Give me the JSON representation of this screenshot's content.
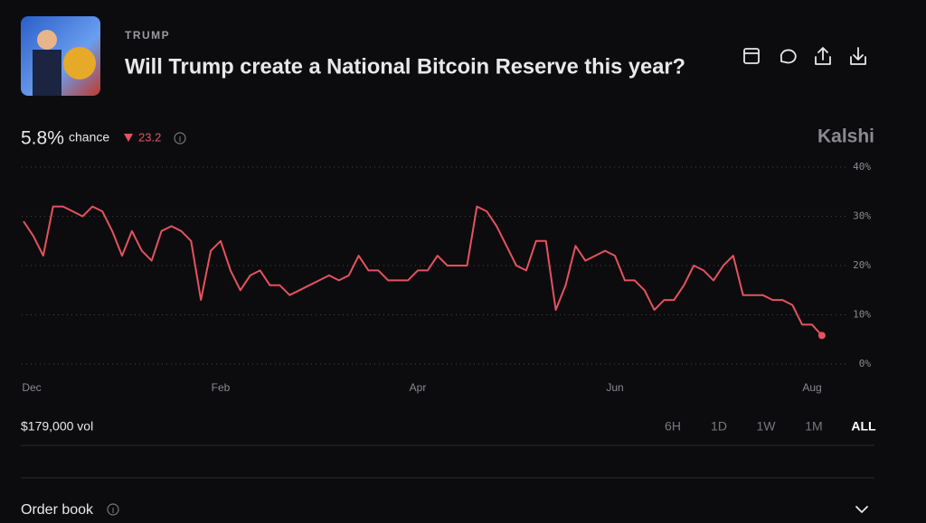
{
  "header": {
    "category": "TRUMP",
    "title": "Will Trump create a National Bitcoin Reserve this year?"
  },
  "stats": {
    "chance_value": "5.8%",
    "chance_label": "chance",
    "change": "23.2",
    "brand": "Kalshi"
  },
  "chart_data": {
    "type": "line",
    "color": "#e5525d",
    "categories": [
      "Dec",
      null,
      null,
      null,
      null,
      null,
      null,
      null,
      null,
      null,
      null,
      null,
      null,
      null,
      null,
      null,
      null,
      null,
      null,
      null,
      "Feb",
      null,
      null,
      null,
      null,
      null,
      null,
      null,
      null,
      null,
      null,
      null,
      null,
      null,
      null,
      null,
      null,
      null,
      null,
      null,
      "Apr",
      null,
      null,
      null,
      null,
      null,
      null,
      null,
      null,
      null,
      null,
      null,
      null,
      null,
      null,
      null,
      null,
      null,
      null,
      null,
      "Jun",
      null,
      null,
      null,
      null,
      null,
      null,
      null,
      null,
      null,
      null,
      null,
      null,
      null,
      null,
      null,
      null,
      null,
      null,
      null,
      "Aug",
      null
    ],
    "values": [
      29,
      26,
      22,
      32,
      32,
      31,
      30,
      32,
      31,
      27,
      22,
      27,
      23,
      21,
      27,
      28,
      27,
      25,
      13,
      23,
      25,
      19,
      15,
      18,
      19,
      16,
      16,
      14,
      15,
      16,
      17,
      18,
      17,
      18,
      22,
      19,
      19,
      17,
      17,
      17,
      19,
      19,
      22,
      20,
      20,
      20,
      32,
      31,
      28,
      24,
      20,
      19,
      25,
      25,
      11,
      16,
      24,
      21,
      22,
      23,
      22,
      17,
      17,
      15,
      11,
      13,
      13,
      16,
      20,
      19,
      17,
      20,
      22,
      14,
      14,
      14,
      13,
      13,
      12,
      8,
      8,
      5.8
    ],
    "ylim": [
      0,
      40
    ],
    "yticks": [
      {
        "value": 0,
        "label": "0%"
      },
      {
        "value": 10,
        "label": "10%"
      },
      {
        "value": 20,
        "label": "20%"
      },
      {
        "value": 30,
        "label": "30%"
      },
      {
        "value": 40,
        "label": "40%"
      }
    ],
    "grid": true
  },
  "footer": {
    "volume": "$179,000 vol",
    "ranges": [
      "6H",
      "1D",
      "1W",
      "1M",
      "ALL"
    ],
    "order_book": "Order book"
  }
}
